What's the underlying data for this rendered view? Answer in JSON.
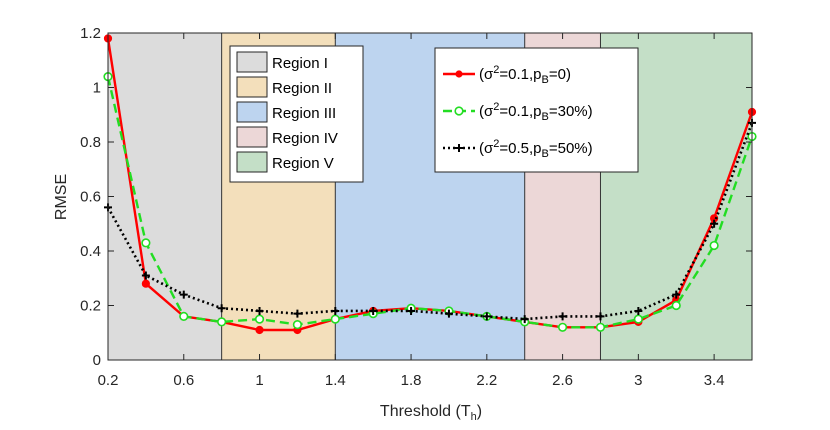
{
  "chart_data": {
    "type": "line",
    "xlabel": "Threshold (T",
    "xlabel_sub": "h",
    "xlabel_close": ")",
    "ylabel": "RMSE",
    "xlim": [
      0.2,
      3.6
    ],
    "ylim": [
      0,
      1.2
    ],
    "xticks": [
      0.2,
      0.6,
      1,
      1.4,
      1.8,
      2.2,
      2.6,
      3,
      3.4
    ],
    "xtick_labels": [
      "0.2",
      "0.6",
      "1",
      "1.4",
      "1.8",
      "2.2",
      "2.6",
      "3",
      "3.4"
    ],
    "yticks": [
      0,
      0.2,
      0.4,
      0.6,
      0.8,
      1,
      1.2
    ],
    "ytick_labels": [
      "0",
      "0.2",
      "0.4",
      "0.6",
      "0.8",
      "1",
      "1.2"
    ],
    "x": [
      0.2,
      0.4,
      0.6,
      0.8,
      1.0,
      1.2,
      1.4,
      1.6,
      1.8,
      2.0,
      2.2,
      2.4,
      2.6,
      2.8,
      3.0,
      3.2,
      3.4,
      3.6
    ],
    "regions": [
      {
        "name": "Region I",
        "x0": 0.2,
        "x1": 0.8,
        "color": "#dcdcdc"
      },
      {
        "name": "Region II",
        "x0": 0.8,
        "x1": 1.4,
        "color": "#f3dfbb"
      },
      {
        "name": "Region III",
        "x0": 1.4,
        "x1": 2.4,
        "color": "#bdd4ef"
      },
      {
        "name": "Region IV",
        "x0": 2.4,
        "x1": 2.8,
        "color": "#ecd7d7"
      },
      {
        "name": "Region V",
        "x0": 2.8,
        "x1": 3.6,
        "color": "#c4dfc7"
      }
    ],
    "series": [
      {
        "name_prefix": "(σ",
        "name_sup": "2",
        "name_mid": "=0.1,p",
        "name_sub": "B",
        "name_suffix": "=0)",
        "color": "#ff0000",
        "dash": "solid",
        "marker": "filled-circle",
        "values": [
          1.18,
          0.28,
          0.16,
          0.14,
          0.11,
          0.11,
          0.15,
          0.18,
          0.19,
          0.18,
          0.16,
          0.14,
          0.12,
          0.12,
          0.14,
          0.22,
          0.52,
          0.91
        ]
      },
      {
        "name_prefix": "(σ",
        "name_sup": "2",
        "name_mid": "=0.1,p",
        "name_sub": "B",
        "name_suffix": "=30%)",
        "color": "#22dd22",
        "dash": "dashed",
        "marker": "open-circle",
        "values": [
          1.04,
          0.43,
          0.16,
          0.14,
          0.15,
          0.13,
          0.15,
          0.17,
          0.19,
          0.18,
          0.16,
          0.14,
          0.12,
          0.12,
          0.15,
          0.2,
          0.42,
          0.82
        ]
      },
      {
        "name_prefix": "(σ",
        "name_sup": "2",
        "name_mid": "=0.5,p",
        "name_sub": "B",
        "name_suffix": "=50%)",
        "color": "#000000",
        "dash": "dotted",
        "marker": "plus",
        "values": [
          0.56,
          0.31,
          0.24,
          0.19,
          0.18,
          0.17,
          0.18,
          0.18,
          0.18,
          0.17,
          0.16,
          0.15,
          0.16,
          0.16,
          0.18,
          0.24,
          0.5,
          0.87
        ]
      }
    ],
    "region_legend_position": "top-left",
    "series_legend_position": "top-right",
    "grid": false
  }
}
